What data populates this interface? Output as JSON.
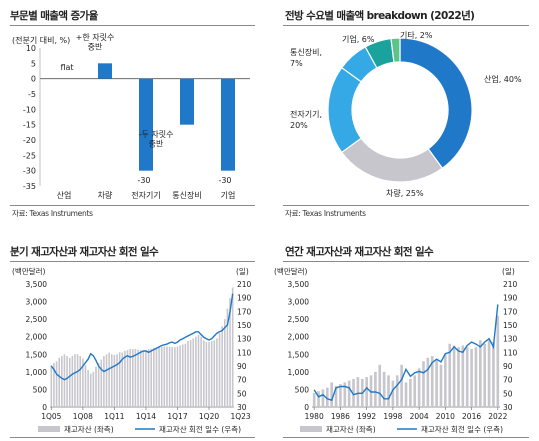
{
  "panels": {
    "p1": {
      "title": "부문별 매출액 증가율",
      "source": "자료: Texas Instruments"
    },
    "p2": {
      "title": "전방 수요별 매출액 breakdown (2022년)",
      "source": "자료: Texas Instruments"
    },
    "p3": {
      "title": "분기 재고자산과 재고자산 회전 일수"
    },
    "p4": {
      "title": "연간 재고자산과 재고자산 회전 일수"
    }
  },
  "colors": {
    "blue": "#1f78c8",
    "gray": "#c6c6cc",
    "sky": "#35a8e6",
    "teal": "#1aa39c",
    "green": "#5cc487"
  },
  "chart_data": [
    {
      "type": "bar",
      "unit_label": "(전분기 대비, %)",
      "categories": [
        "산업",
        "차량",
        "전자기기",
        "통신장비",
        "기업"
      ],
      "values": [
        0,
        5,
        -30,
        -15,
        -30
      ],
      "data_labels": [
        "flat",
        "+한 자릿수\n중반",
        "-30",
        "-두 자릿수\n중반",
        "-30"
      ],
      "ylim": [
        -35,
        10
      ],
      "yticks": [
        10,
        5,
        0,
        -5,
        -10,
        -15,
        -20,
        -25,
        -30,
        -35
      ]
    },
    {
      "type": "pie",
      "donut": true,
      "slices": [
        {
          "label": "산업",
          "value": 40
        },
        {
          "label": "차량",
          "value": 25
        },
        {
          "label": "전자기기",
          "value": 20
        },
        {
          "label": "통신장비",
          "value": 7
        },
        {
          "label": "기업",
          "value": 6
        },
        {
          "label": "기타",
          "value": 2
        }
      ],
      "data_labels": [
        "산업, 40%",
        "차량, 25%",
        "전자기기,\n20%",
        "통신장비,\n7%",
        "기업, 6%",
        "기타, 2%"
      ]
    },
    {
      "type": "bar",
      "y_unit_label": "(백만달러)",
      "y2_unit_label": "(일)",
      "x_ticks": [
        "1Q05",
        "1Q08",
        "1Q11",
        "1Q14",
        "1Q17",
        "1Q20",
        "1Q23"
      ],
      "ylim": [
        0,
        3500
      ],
      "y2lim": [
        30,
        210
      ],
      "yticks": [
        "3,500",
        "3,000",
        "2,500",
        "2,000",
        "1,500",
        "1,000",
        "500",
        "0"
      ],
      "y2ticks": [
        210,
        190,
        170,
        150,
        130,
        110,
        90,
        70,
        50,
        30
      ],
      "series": [
        {
          "name": "재고자산 (좌측)",
          "type": "bar",
          "axis": "left",
          "values": [
            1200,
            1250,
            1300,
            1400,
            1450,
            1500,
            1450,
            1400,
            1450,
            1500,
            1500,
            1450,
            1380,
            1200,
            1050,
            950,
            1000,
            1150,
            1250,
            1350,
            1450,
            1500,
            1550,
            1500,
            1480,
            1500,
            1560,
            1550,
            1600,
            1620,
            1650,
            1650,
            1650,
            1630,
            1620,
            1600,
            1620,
            1650,
            1660,
            1680,
            1690,
            1700,
            1710,
            1720,
            1720,
            1710,
            1700,
            1700,
            1720,
            1750,
            1780,
            1800,
            1880,
            1900,
            1950,
            2000,
            2050,
            2000,
            1900,
            1850,
            1850,
            1880,
            1900,
            1950,
            2100,
            2300,
            2500,
            2800,
            3100,
            3400
          ]
        },
        {
          "name": "재고자산 회전 일수 (우측)",
          "type": "line",
          "axis": "right",
          "values": [
            90,
            85,
            78,
            75,
            72,
            70,
            72,
            75,
            78,
            80,
            82,
            85,
            90,
            95,
            100,
            108,
            105,
            98,
            90,
            85,
            82,
            84,
            86,
            88,
            90,
            92,
            95,
            100,
            103,
            105,
            103,
            104,
            106,
            108,
            110,
            112,
            112,
            110,
            112,
            114,
            116,
            118,
            120,
            121,
            122,
            124,
            125,
            123,
            125,
            128,
            130,
            132,
            134,
            136,
            138,
            140,
            140,
            136,
            132,
            130,
            128,
            130,
            134,
            138,
            140,
            142,
            146,
            150,
            170,
            196
          ]
        }
      ]
    },
    {
      "type": "bar",
      "y_unit_label": "(백만달러)",
      "y2_unit_label": "(일)",
      "x_ticks": [
        "1980",
        "1986",
        "1992",
        "1998",
        "2004",
        "2010",
        "2016",
        "2022"
      ],
      "ylim": [
        0,
        3500
      ],
      "y2lim": [
        30,
        210
      ],
      "yticks": [
        "3,500",
        "3,000",
        "2,500",
        "2,000",
        "1,500",
        "1,000",
        "500",
        "0"
      ],
      "y2ticks": [
        210,
        190,
        170,
        150,
        130,
        110,
        90,
        70,
        50,
        30
      ],
      "series": [
        {
          "name": "재고자산 (좌측)",
          "type": "bar",
          "axis": "left",
          "x": [
            1980,
            1981,
            1982,
            1983,
            1984,
            1985,
            1986,
            1987,
            1988,
            1989,
            1990,
            1991,
            1992,
            1993,
            1994,
            1995,
            1996,
            1997,
            1998,
            1999,
            2000,
            2001,
            2002,
            2003,
            2004,
            2005,
            2006,
            2007,
            2008,
            2009,
            2010,
            2011,
            2012,
            2013,
            2014,
            2015,
            2016,
            2017,
            2018,
            2019,
            2020,
            2021,
            2022
          ],
          "values": [
            400,
            450,
            500,
            550,
            700,
            600,
            650,
            700,
            750,
            800,
            850,
            800,
            850,
            900,
            1000,
            1200,
            1000,
            900,
            750,
            900,
            1200,
            700,
            800,
            900,
            1100,
            1300,
            1400,
            1450,
            1350,
            1200,
            1500,
            1800,
            1750,
            1700,
            1750,
            1700,
            1650,
            1700,
            1900,
            1800,
            1900,
            1850,
            2600
          ]
        },
        {
          "name": "재고자산 회전 일수 (우측)",
          "type": "line",
          "axis": "right",
          "x": [
            1980,
            1981,
            1982,
            1983,
            1984,
            1985,
            1986,
            1987,
            1988,
            1989,
            1990,
            1991,
            1992,
            1993,
            1994,
            1995,
            1996,
            1997,
            1998,
            1999,
            2000,
            2001,
            2002,
            2003,
            2004,
            2005,
            2006,
            2007,
            2008,
            2009,
            2010,
            2011,
            2012,
            2013,
            2014,
            2015,
            2016,
            2017,
            2018,
            2019,
            2020,
            2021,
            2022
          ],
          "values": [
            55,
            45,
            48,
            42,
            40,
            58,
            60,
            60,
            58,
            48,
            50,
            50,
            58,
            52,
            52,
            50,
            42,
            42,
            55,
            62,
            70,
            85,
            75,
            80,
            82,
            80,
            85,
            95,
            100,
            96,
            108,
            110,
            118,
            112,
            110,
            120,
            125,
            122,
            118,
            125,
            130,
            118,
            180
          ]
        }
      ]
    }
  ]
}
